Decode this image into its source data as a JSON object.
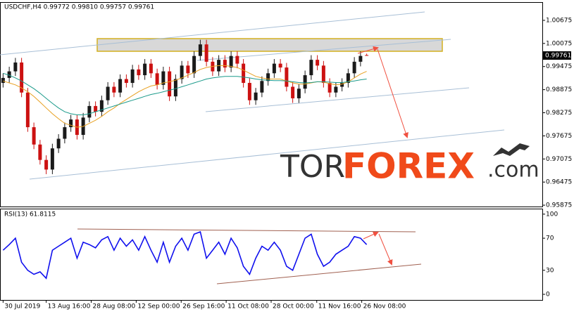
{
  "chart_data": [
    {
      "type": "candlestick",
      "title": "USDCHF,H4  0.99772 0.99810 0.99757 0.99761",
      "ylim": [
        0.9584,
        1.0113
      ],
      "xlim": [
        -0.5,
        87.5
      ],
      "yticks": [
        1.00675,
        1.00075,
        0.99475,
        0.98875,
        0.98275,
        0.97675,
        0.97075,
        0.96475,
        0.95875
      ],
      "up_color": "#1a1a1a",
      "down_color": "#cc1111",
      "open": [
        0.9905,
        0.9918,
        0.9935,
        0.9958,
        0.988,
        0.979,
        0.9745,
        0.9705,
        0.968,
        0.9735,
        0.976,
        0.979,
        0.981,
        0.977,
        0.9815,
        0.9845,
        0.983,
        0.986,
        0.9895,
        0.988,
        0.9915,
        0.9905,
        0.994,
        0.9925,
        0.9955,
        0.993,
        0.99,
        0.9935,
        0.987,
        0.9915,
        0.995,
        0.993,
        0.9975,
        1.0005,
        0.996,
        0.9935,
        0.9965,
        0.9945,
        0.9975,
        0.9955,
        0.9905,
        0.986,
        0.988,
        0.991,
        0.993,
        0.9955,
        0.9945,
        0.9895,
        0.9865,
        0.989,
        0.9925,
        0.9965,
        0.995,
        0.9905,
        0.988,
        0.9895,
        0.9905,
        0.993,
        0.996,
        0.99772
      ],
      "high": [
        0.993,
        0.9947,
        0.997,
        0.997,
        0.9892,
        0.9802,
        0.9757,
        0.9717,
        0.9747,
        0.9772,
        0.9802,
        0.9822,
        0.9822,
        0.9827,
        0.9857,
        0.9857,
        0.9872,
        0.9907,
        0.9907,
        0.9927,
        0.9927,
        0.9952,
        0.9952,
        0.9967,
        0.9967,
        0.9942,
        0.9947,
        0.9947,
        0.9927,
        0.9962,
        0.9962,
        0.9987,
        1.0017,
        1.0017,
        0.9972,
        0.9977,
        0.9977,
        0.9987,
        0.9987,
        0.9967,
        0.9917,
        0.9892,
        0.9922,
        0.9942,
        0.9967,
        0.9967,
        0.9957,
        0.9907,
        0.9902,
        0.9937,
        0.9977,
        0.9977,
        0.9962,
        0.9917,
        0.9907,
        0.9917,
        0.9942,
        0.9972,
        0.9987,
        0.9981
      ],
      "low": [
        0.9893,
        0.9906,
        0.9923,
        0.9868,
        0.9778,
        0.9733,
        0.9693,
        0.9668,
        0.9668,
        0.9723,
        0.9748,
        0.9778,
        0.9758,
        0.9758,
        0.9803,
        0.9818,
        0.9818,
        0.9848,
        0.9868,
        0.9868,
        0.9893,
        0.9893,
        0.9913,
        0.9913,
        0.9918,
        0.9888,
        0.9888,
        0.9858,
        0.9858,
        0.9903,
        0.9918,
        0.9918,
        0.9963,
        0.9948,
        0.9923,
        0.9923,
        0.9933,
        0.9933,
        0.9943,
        0.9893,
        0.9848,
        0.9848,
        0.9868,
        0.9898,
        0.9918,
        0.9933,
        0.9883,
        0.9853,
        0.9853,
        0.9878,
        0.9913,
        0.9938,
        0.9893,
        0.9868,
        0.9868,
        0.9883,
        0.9893,
        0.9918,
        0.9948,
        0.99757
      ],
      "close": [
        0.9918,
        0.9935,
        0.9958,
        0.988,
        0.979,
        0.9745,
        0.9705,
        0.968,
        0.9735,
        0.976,
        0.979,
        0.981,
        0.977,
        0.9815,
        0.9845,
        0.983,
        0.986,
        0.9895,
        0.988,
        0.9915,
        0.9905,
        0.994,
        0.9925,
        0.9955,
        0.993,
        0.99,
        0.9935,
        0.987,
        0.9915,
        0.995,
        0.993,
        0.9975,
        1.0005,
        0.996,
        0.9935,
        0.9965,
        0.9945,
        0.9975,
        0.9955,
        0.9905,
        0.986,
        0.988,
        0.991,
        0.993,
        0.9955,
        0.9945,
        0.9895,
        0.9865,
        0.989,
        0.9925,
        0.9965,
        0.995,
        0.9905,
        0.988,
        0.9895,
        0.9905,
        0.993,
        0.996,
        0.9975,
        0.99761
      ],
      "series": [
        {
          "color": "#e8a020",
          "values": [
            0.991,
            0.9905,
            0.99,
            0.9892,
            0.9882,
            0.987,
            0.9855,
            0.984,
            0.9825,
            0.9812,
            0.98,
            0.9795,
            0.979,
            0.9792,
            0.98,
            0.9808,
            0.9818,
            0.983,
            0.984,
            0.9852,
            0.9862,
            0.9872,
            0.9882,
            0.989,
            0.9897,
            0.99,
            0.9905,
            0.9908,
            0.9912,
            0.9918,
            0.9925,
            0.9932,
            0.994,
            0.9945,
            0.9948,
            0.995,
            0.995,
            0.9948,
            0.9945,
            0.9938,
            0.993,
            0.9922,
            0.9918,
            0.9915,
            0.9915,
            0.9915,
            0.991,
            0.9905,
            0.9902,
            0.9902,
            0.9905,
            0.9908,
            0.9907,
            0.9903,
            0.99,
            0.9902,
            0.9908,
            0.9918,
            0.9928,
            0.9935
          ]
        },
        {
          "color": "#1a9a8a",
          "values": [
            0.993,
            0.9925,
            0.9918,
            0.991,
            0.99,
            0.989,
            0.9878,
            0.9865,
            0.9852,
            0.984,
            0.983,
            0.9825,
            0.9822,
            0.9822,
            0.9825,
            0.983,
            0.9835,
            0.984,
            0.9845,
            0.985,
            0.9855,
            0.986,
            0.9865,
            0.987,
            0.9875,
            0.9878,
            0.9882,
            0.9886,
            0.989,
            0.9895,
            0.99,
            0.9905,
            0.991,
            0.9915,
            0.9918,
            0.992,
            0.9922,
            0.9922,
            0.9922,
            0.992,
            0.9918,
            0.9915,
            0.9913,
            0.9912,
            0.9911,
            0.9911,
            0.991,
            0.9908,
            0.9906,
            0.9905,
            0.9906,
            0.9908,
            0.9908,
            0.9907,
            0.9906,
            0.9906,
            0.9908,
            0.991,
            0.9913,
            0.9915
          ]
        }
      ]
    },
    {
      "type": "line",
      "title": "RSI(13) 61.8115",
      "ylim": [
        -7,
        106
      ],
      "xlim": [
        -0.5,
        87.5
      ],
      "yticks": [
        100,
        70,
        30,
        0
      ],
      "xticks": [
        {
          "value": 0,
          "label": "30 Jul 2019"
        },
        {
          "value": 7,
          "label": "13 Aug 16:00"
        },
        {
          "value": 14.3,
          "label": "28 Aug 08:00"
        },
        {
          "value": 21.6,
          "label": "12 Sep 00:00"
        },
        {
          "value": 28.9,
          "label": "26 Sep 16:00"
        },
        {
          "value": 36.2,
          "label": "11 Oct 08:00"
        },
        {
          "value": 43.5,
          "label": "28 Oct 00:00"
        },
        {
          "value": 50.9,
          "label": "11 Nov 16:00"
        },
        {
          "value": 58.2,
          "label": "26 Nov 08:00"
        }
      ],
      "series": [
        {
          "color": "#1010ee",
          "values": [
            55,
            62,
            70,
            40,
            30,
            25,
            28,
            20,
            55,
            60,
            65,
            70,
            45,
            65,
            62,
            58,
            68,
            72,
            55,
            70,
            60,
            68,
            55,
            72,
            55,
            40,
            65,
            40,
            60,
            70,
            55,
            75,
            78,
            45,
            55,
            65,
            50,
            70,
            58,
            35,
            25,
            45,
            60,
            55,
            65,
            55,
            35,
            30,
            50,
            70,
            75,
            50,
            35,
            40,
            50,
            55,
            60,
            72,
            70,
            62
          ]
        }
      ]
    }
  ],
  "logo": [
    "TOR",
    "FOREX",
    ".com"
  ]
}
